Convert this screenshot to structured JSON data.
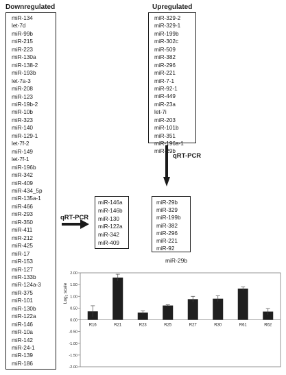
{
  "downregulated": {
    "title": "Downregulated",
    "items": [
      "miR-134",
      "let-7d",
      "miR-99b",
      "miR-215",
      "miR-223",
      "miR-130a",
      "miR-138-2",
      "miR-193b",
      "let-7a-3",
      "miR-208",
      "miR-123",
      "miR-19b-2",
      "miR-10b",
      "miR-323",
      "miR-140",
      "miR-129-1",
      "let-7f-2",
      "miR-149",
      "let-7f-1",
      "miR-196b",
      "miR-342",
      "miR-409",
      "miR-434_5p",
      "miR-135a-1",
      "miR-466",
      "miR-293",
      "miR-350",
      "miR-411",
      "miR-212",
      "miR-425",
      "miR-17",
      "miR-153",
      "miR-127",
      "miR-133b",
      "miR-124a-3",
      "miR-375",
      "miR-101",
      "miR-130b",
      "miR-122a",
      "miR-146",
      "miR-10a",
      "miR-142",
      "miR-24-1",
      "miR-139",
      "miR-186"
    ]
  },
  "upregulated": {
    "title": "Upregulated",
    "items": [
      "miR-329-2",
      "miR-329-1",
      "miR-199b",
      "miR-302c",
      "miR-509",
      "miR-382",
      "miR-296",
      "miR-221",
      "miR-7-1",
      "miR-92-1",
      "miR-449",
      "miR-23a",
      "let-7i",
      "miR-203",
      "miR-101b",
      "miR-351",
      "miR-196a-1",
      "miR-29b"
    ]
  },
  "qrt_label_vertical": "qRT-PCR",
  "qrt_label_horizontal": "qRT-PCR",
  "validated_down": {
    "items": [
      "miR-146a",
      "miR-146b",
      "miR-130",
      "miR-122a",
      "miR-342",
      "miR-409"
    ]
  },
  "validated_up": {
    "items": [
      "miR-29b",
      "miR-329",
      "miR-199b",
      "miR-382",
      "miR-296",
      "miR-221",
      "miR-92"
    ]
  },
  "chart_data": {
    "type": "bar",
    "title": "miR-29b",
    "ylabel": "Log2 scale",
    "ylabel_base": "Log",
    "ylabel_sub": "2",
    "ylabel_rest": " scale",
    "categories": [
      "R16",
      "R21",
      "R23",
      "R25",
      "R27",
      "R30",
      "R61",
      "R62"
    ],
    "values": [
      0.36,
      1.8,
      0.31,
      0.61,
      0.88,
      0.9,
      1.33,
      0.35
    ],
    "errors": [
      0.24,
      0.14,
      0.07,
      0.03,
      0.12,
      0.12,
      0.07,
      0.13
    ],
    "ylim": [
      -2.0,
      2.0
    ],
    "yticks": [
      "2.00",
      "1.50",
      "1.00",
      "0.50",
      "0.00",
      "-0.50",
      "-1.00",
      "-1.50",
      "-2.00"
    ],
    "bar_color": "#1f1f1f"
  }
}
